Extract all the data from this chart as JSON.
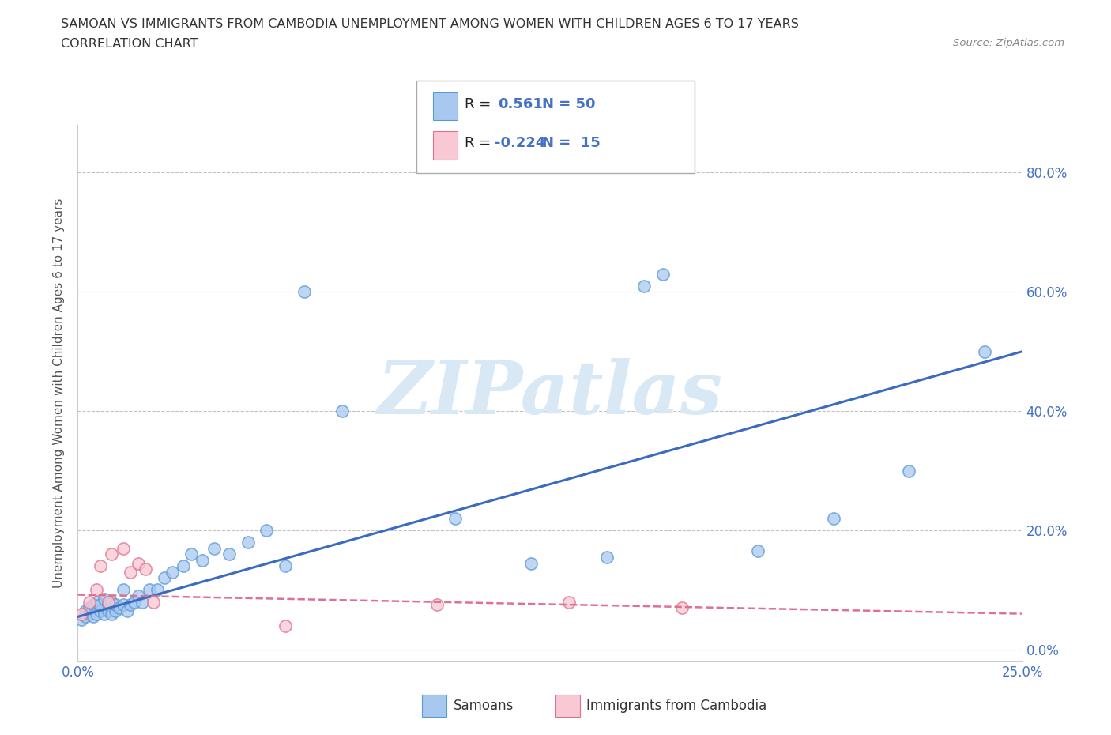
{
  "title_line1": "SAMOAN VS IMMIGRANTS FROM CAMBODIA UNEMPLOYMENT AMONG WOMEN WITH CHILDREN AGES 6 TO 17 YEARS",
  "title_line2": "CORRELATION CHART",
  "source": "Source: ZipAtlas.com",
  "ylabel": "Unemployment Among Women with Children Ages 6 to 17 years",
  "ytick_labels": [
    "0.0%",
    "20.0%",
    "40.0%",
    "60.0%",
    "80.0%"
  ],
  "ytick_vals": [
    0.0,
    0.2,
    0.4,
    0.6,
    0.8
  ],
  "xtick_labels": [
    "0.0%",
    "25.0%"
  ],
  "xtick_vals": [
    0.0,
    0.25
  ],
  "xlim": [
    0.0,
    0.25
  ],
  "ylim": [
    -0.02,
    0.88
  ],
  "color_samoan_fill": "#A8C8F0",
  "color_samoan_edge": "#5B9BD5",
  "color_cambodia_fill": "#F8C8D4",
  "color_cambodia_edge": "#E07090",
  "color_line_samoan": "#3A6BBF",
  "color_line_cambodia": "#E07090",
  "grid_color": "#BBBBBB",
  "background_color": "#FFFFFF",
  "watermark_text": "ZIPatlas",
  "watermark_color": "#D8E8F5",
  "samoans_x": [
    0.001,
    0.002,
    0.002,
    0.003,
    0.003,
    0.004,
    0.004,
    0.005,
    0.005,
    0.006,
    0.006,
    0.007,
    0.007,
    0.008,
    0.008,
    0.009,
    0.009,
    0.01,
    0.01,
    0.011,
    0.012,
    0.012,
    0.013,
    0.014,
    0.015,
    0.016,
    0.017,
    0.019,
    0.021,
    0.023,
    0.025,
    0.028,
    0.03,
    0.033,
    0.036,
    0.04,
    0.045,
    0.05,
    0.055,
    0.06,
    0.07,
    0.1,
    0.12,
    0.14,
    0.15,
    0.155,
    0.18,
    0.2,
    0.22,
    0.24
  ],
  "samoans_y": [
    0.05,
    0.055,
    0.065,
    0.06,
    0.07,
    0.055,
    0.075,
    0.06,
    0.08,
    0.065,
    0.075,
    0.06,
    0.085,
    0.065,
    0.075,
    0.06,
    0.08,
    0.065,
    0.075,
    0.07,
    0.075,
    0.1,
    0.065,
    0.075,
    0.08,
    0.09,
    0.08,
    0.1,
    0.1,
    0.12,
    0.13,
    0.14,
    0.16,
    0.15,
    0.17,
    0.16,
    0.18,
    0.2,
    0.14,
    0.6,
    0.4,
    0.22,
    0.145,
    0.155,
    0.61,
    0.63,
    0.165,
    0.22,
    0.3,
    0.5
  ],
  "cambodia_x": [
    0.001,
    0.003,
    0.005,
    0.006,
    0.008,
    0.009,
    0.012,
    0.014,
    0.016,
    0.018,
    0.02,
    0.055,
    0.095,
    0.13,
    0.16
  ],
  "cambodia_y": [
    0.06,
    0.08,
    0.1,
    0.14,
    0.08,
    0.16,
    0.17,
    0.13,
    0.145,
    0.135,
    0.08,
    0.04,
    0.075,
    0.08,
    0.07
  ],
  "trend_samoan_x0": 0.0,
  "trend_samoan_y0": 0.055,
  "trend_samoan_x1": 0.25,
  "trend_samoan_y1": 0.5,
  "trend_cambodia_x0": 0.0,
  "trend_cambodia_y0": 0.092,
  "trend_cambodia_x1": 0.25,
  "trend_cambodia_y1": 0.06
}
